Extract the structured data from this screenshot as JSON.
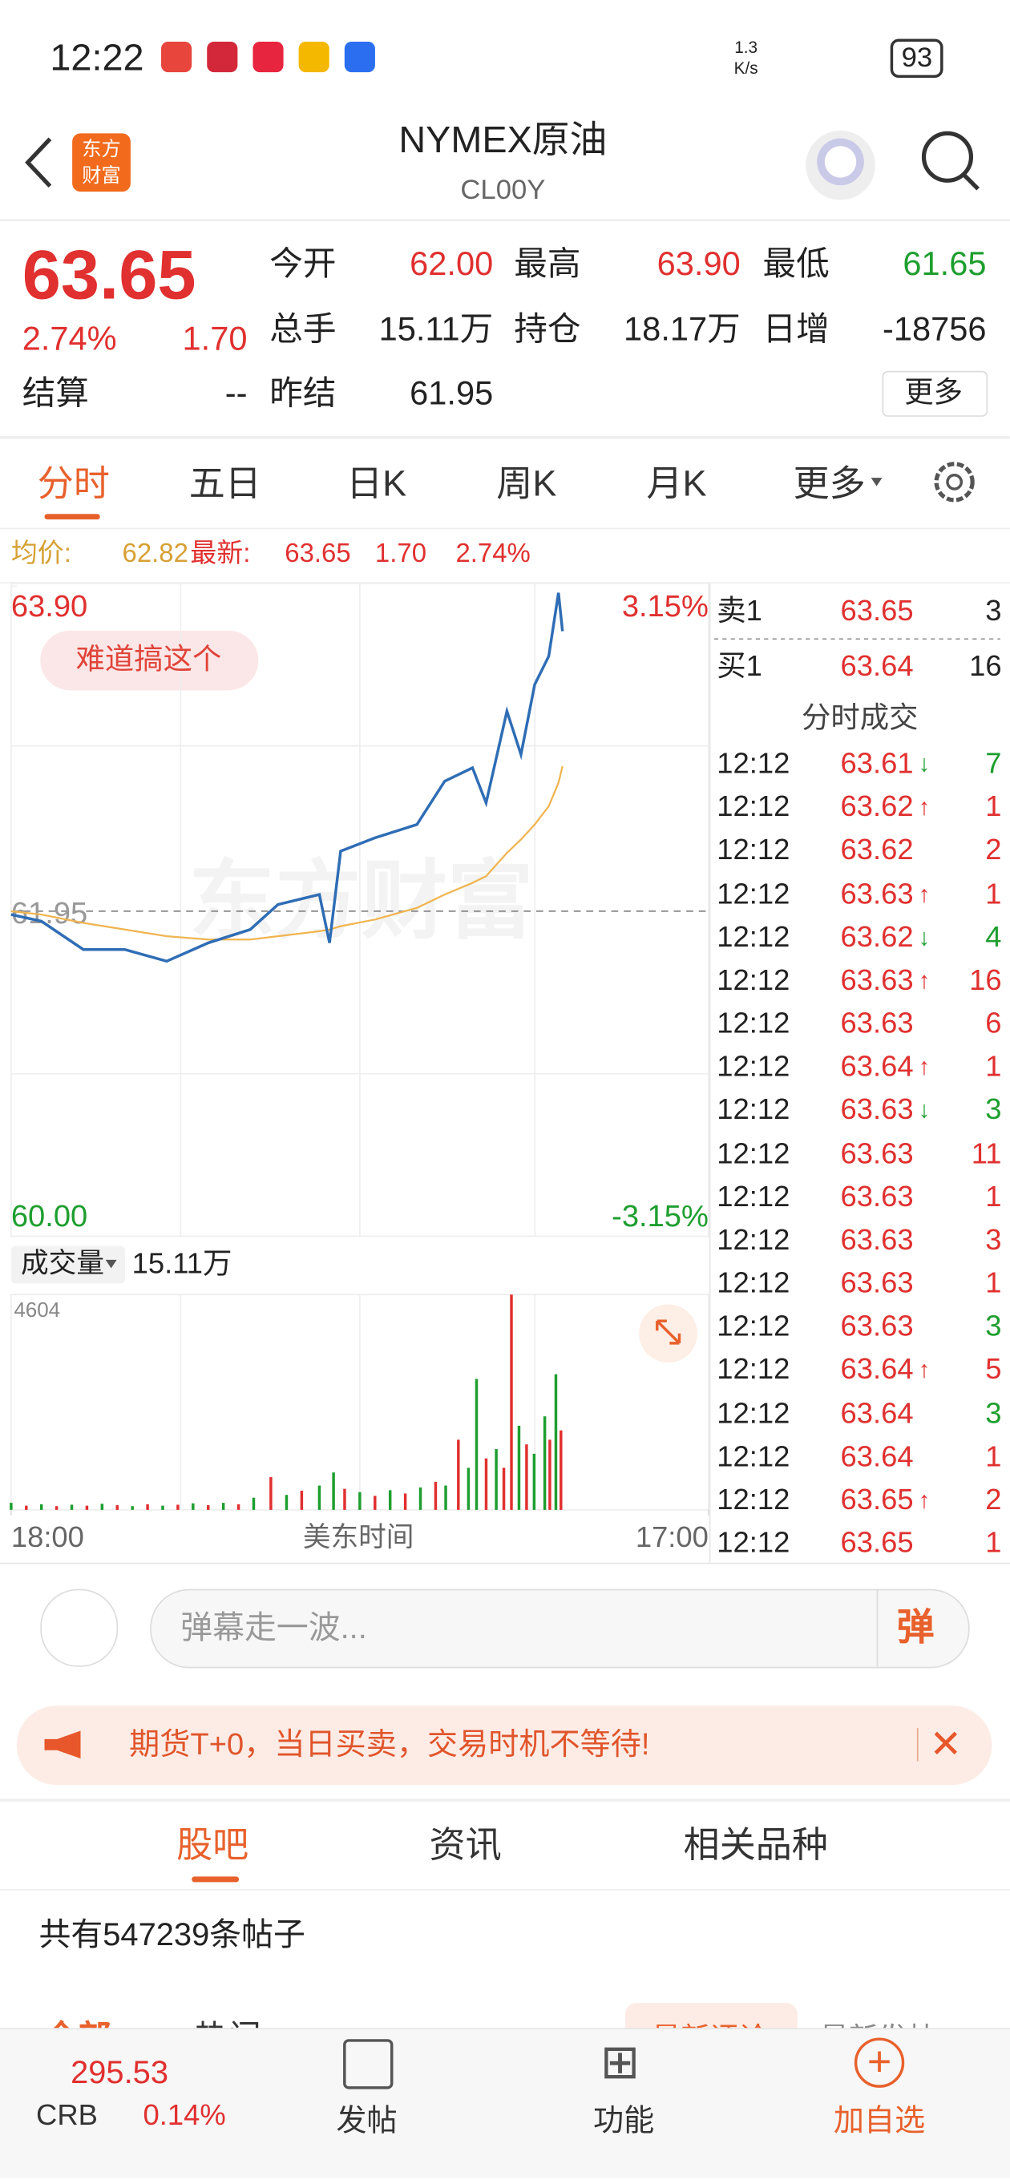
{
  "status_bar": {
    "time": "12:22",
    "net_speed": [
      "1.3",
      "K/s"
    ],
    "battery": "93"
  },
  "header": {
    "logo": [
      "东方",
      "财富"
    ],
    "title": "NYMEX原油",
    "code": "CL00Y"
  },
  "quote": {
    "price": "63.65",
    "change_pct": "2.74%",
    "change": "1.70",
    "settle_label": "结算",
    "settle": "--",
    "fields": [
      {
        "label": "今开",
        "value": "62.00"
      },
      {
        "label": "最高",
        "value": "63.90"
      },
      {
        "label": "最低",
        "value": "61.65"
      },
      {
        "label": "总手",
        "value": "15.11万"
      },
      {
        "label": "持仓",
        "value": "18.17万"
      },
      {
        "label": "日增",
        "value": "-18756"
      },
      {
        "label": "昨结",
        "value": "61.95"
      }
    ],
    "more": "更多"
  },
  "tabs": [
    "分时",
    "五日",
    "日K",
    "周K",
    "月K",
    "更多"
  ],
  "info_bar": {
    "avg_label": "均价:",
    "avg": "62.82",
    "latest_label": "最新:",
    "latest": "63.65",
    "change": "1.70",
    "change_pct": "2.74%"
  },
  "intraday": {
    "watermark": "东方财富",
    "bubble": "难道搞这个",
    "ylim": [
      60,
      63.9
    ],
    "yticks": [
      {
        "value": 60,
        "label": "60.00"
      },
      {
        "value": 61.95,
        "label": "61.95"
      },
      {
        "value": 63.9,
        "label": "63.90"
      }
    ],
    "pct_labels": [
      "-3.15%",
      "3.15%"
    ],
    "xlim": [
      0,
      1380
    ],
    "xticks": [
      {
        "value": 0,
        "label": "18:00"
      },
      {
        "value": 1380,
        "label": "17:00"
      }
    ],
    "x_axis_label": "美东时间",
    "x": [
      0,
      60,
      143,
      225,
      308,
      390,
      473,
      528,
      610,
      630,
      652,
      720,
      803,
      858,
      913,
      940,
      981,
      1009,
      1036,
      1064,
      1083,
      1091
    ],
    "price": [
      61.93,
      61.89,
      61.72,
      61.72,
      61.65,
      61.76,
      61.84,
      61.99,
      62.05,
      61.76,
      62.31,
      62.39,
      62.47,
      62.73,
      62.81,
      62.6,
      63.15,
      62.89,
      63.31,
      63.48,
      63.86,
      63.63
    ],
    "avg": [
      61.95,
      61.93,
      61.88,
      61.84,
      61.8,
      61.78,
      61.78,
      61.8,
      61.83,
      61.84,
      61.86,
      61.9,
      61.97,
      62.05,
      62.12,
      62.16,
      62.3,
      62.38,
      62.47,
      62.58,
      62.72,
      62.82
    ],
    "price_color": "#2f6db5",
    "avg_color": "#f0b450",
    "volume_label": "成交量",
    "volume_total": "15.11万",
    "vol_ylim": [
      0,
      4604
    ],
    "vol_yticks": [
      4604
    ],
    "vol_x": [
      0,
      30,
      60,
      90,
      120,
      150,
      180,
      210,
      240,
      270,
      300,
      330,
      360,
      390,
      420,
      450,
      480,
      514,
      545,
      575,
      610,
      638,
      660,
      690,
      720,
      750,
      780,
      810,
      840,
      860,
      885,
      905,
      921,
      940,
      960,
      975,
      990,
      1005,
      1020,
      1035,
      1056,
      1066,
      1078,
      1088
    ],
    "vol": [
      150,
      90,
      120,
      80,
      110,
      90,
      130,
      100,
      80,
      120,
      90,
      110,
      140,
      100,
      150,
      120,
      260,
      700,
      320,
      410,
      520,
      800,
      450,
      380,
      300,
      420,
      350,
      480,
      600,
      520,
      1500,
      900,
      2800,
      1100,
      1300,
      900,
      4604,
      1800,
      1400,
      1200,
      2000,
      1500,
      2900,
      1700
    ],
    "vol_colors": [
      "#1e9e2f",
      "#e0302f",
      "#1e9e2f",
      "#e0302f",
      "#1e9e2f",
      "#e0302f",
      "#1e9e2f",
      "#e0302f",
      "#1e9e2f",
      "#e0302f",
      "#1e9e2f",
      "#e0302f",
      "#1e9e2f",
      "#e0302f",
      "#1e9e2f",
      "#e0302f",
      "#1e9e2f",
      "#e0302f",
      "#1e9e2f",
      "#e0302f",
      "#1e9e2f",
      "#1e9e2f",
      "#e0302f",
      "#1e9e2f",
      "#e0302f",
      "#1e9e2f",
      "#e0302f",
      "#1e9e2f",
      "#e0302f",
      "#1e9e2f",
      "#e0302f",
      "#1e9e2f",
      "#1e9e2f",
      "#e0302f",
      "#1e9e2f",
      "#e0302f",
      "#e0302f",
      "#1e9e2f",
      "#e0302f",
      "#1e9e2f",
      "#1e9e2f",
      "#e0302f",
      "#1e9e2f",
      "#e0302f"
    ]
  },
  "order_book": {
    "ask": {
      "label": "卖1",
      "price": "63.65",
      "volume": "3"
    },
    "bid": {
      "label": "买1",
      "price": "63.64",
      "volume": "16"
    },
    "trades_title": "分时成交",
    "trades": [
      {
        "time": "12:12",
        "price": "63.61",
        "arrow": "↓",
        "volume": "7",
        "color": "#1e9e2f"
      },
      {
        "time": "12:12",
        "price": "63.62",
        "arrow": "↑",
        "volume": "1",
        "color": "#e0302f"
      },
      {
        "time": "12:12",
        "price": "63.62",
        "volume": "2",
        "color": "#e0302f"
      },
      {
        "time": "12:12",
        "price": "63.63",
        "arrow": "↑",
        "volume": "1",
        "color": "#e0302f"
      },
      {
        "time": "12:12",
        "price": "63.62",
        "arrow": "↓",
        "volume": "4",
        "color": "#1e9e2f"
      },
      {
        "time": "12:12",
        "price": "63.63",
        "arrow": "↑",
        "volume": "16",
        "color": "#e0302f"
      },
      {
        "time": "12:12",
        "price": "63.63",
        "volume": "6",
        "color": "#e0302f"
      },
      {
        "time": "12:12",
        "price": "63.64",
        "arrow": "↑",
        "volume": "1",
        "color": "#e0302f"
      },
      {
        "time": "12:12",
        "price": "63.63",
        "arrow": "↓",
        "volume": "3",
        "color": "#1e9e2f"
      },
      {
        "time": "12:12",
        "price": "63.63",
        "volume": "11",
        "color": "#e0302f"
      },
      {
        "time": "12:12",
        "price": "63.63",
        "volume": "1",
        "color": "#e0302f"
      },
      {
        "time": "12:12",
        "price": "63.63",
        "volume": "3",
        "color": "#e0302f"
      },
      {
        "time": "12:12",
        "price": "63.63",
        "volume": "1",
        "color": "#e0302f"
      },
      {
        "time": "12:12",
        "price": "63.63",
        "volume": "3",
        "color": "#1e9e2f"
      },
      {
        "time": "12:12",
        "price": "63.64",
        "arrow": "↑",
        "volume": "5",
        "color": "#e0302f"
      },
      {
        "time": "12:12",
        "price": "63.64",
        "volume": "3",
        "color": "#1e9e2f"
      },
      {
        "time": "12:12",
        "price": "63.64",
        "volume": "1",
        "color": "#e0302f"
      },
      {
        "time": "12:12",
        "price": "63.65",
        "arrow": "↑",
        "volume": "2",
        "color": "#e0302f"
      },
      {
        "time": "12:12",
        "price": "63.65",
        "volume": "1",
        "color": "#e0302f"
      }
    ]
  },
  "comment_bar": {
    "placeholder": "弹幕走一波...",
    "button": "弹"
  },
  "banner": "期货T+0，当日买卖，交易时机不等待!",
  "section_tabs": [
    "股吧",
    "资讯",
    "相关品种"
  ],
  "post_count": "共有547239条帖子",
  "filters": [
    "全部",
    "热门",
    "最新评论",
    "最新发帖"
  ],
  "bottom_nav": {
    "index_value": "295.53",
    "index_name": "CRB",
    "index_pct": "0.14%",
    "items": [
      "发帖",
      "功能",
      "加自选"
    ]
  }
}
